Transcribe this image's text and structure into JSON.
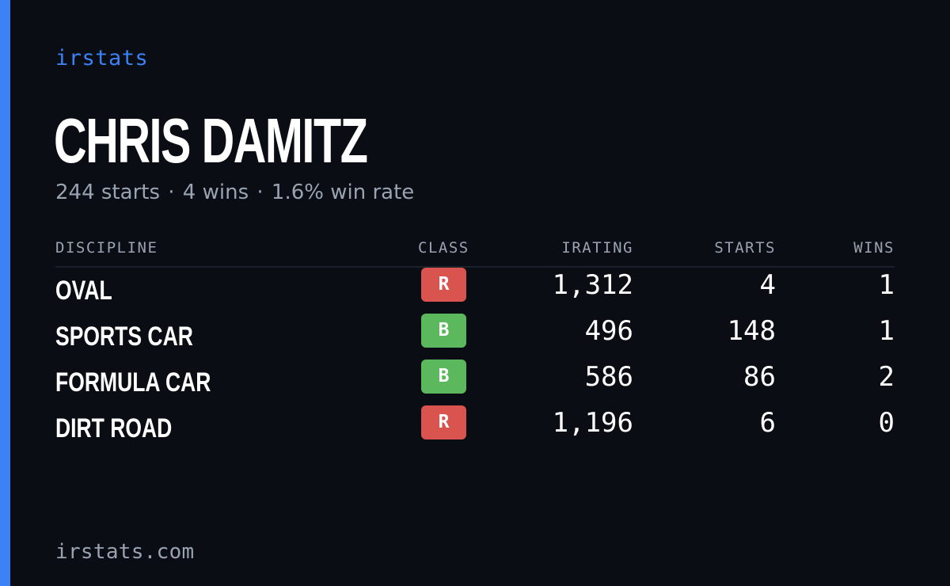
{
  "brand": "irstats",
  "driver": {
    "name": "CHRIS DAMITZ",
    "starts": "244 starts",
    "wins": "4 wins",
    "win_rate": "1.6% win rate",
    "separator": "·"
  },
  "table": {
    "headers": {
      "discipline": "DISCIPLINE",
      "class": "CLASS",
      "irating": "IRATING",
      "starts": "STARTS",
      "wins": "WINS"
    },
    "rows": [
      {
        "discipline": "OVAL",
        "class": "R",
        "class_color": "#d9534f",
        "irating": "1,312",
        "starts": "4",
        "wins": "1"
      },
      {
        "discipline": "SPORTS CAR",
        "class": "B",
        "class_color": "#5cb85c",
        "irating": "496",
        "starts": "148",
        "wins": "1"
      },
      {
        "discipline": "FORMULA CAR",
        "class": "B",
        "class_color": "#5cb85c",
        "irating": "586",
        "starts": "86",
        "wins": "2"
      },
      {
        "discipline": "DIRT ROAD",
        "class": "R",
        "class_color": "#d9534f",
        "irating": "1,196",
        "starts": "6",
        "wins": "0"
      }
    ]
  },
  "footer": "irstats.com",
  "colors": {
    "accent": "#3b82f6",
    "background": "#0a0d13",
    "muted_text": "#9aa3b2"
  }
}
